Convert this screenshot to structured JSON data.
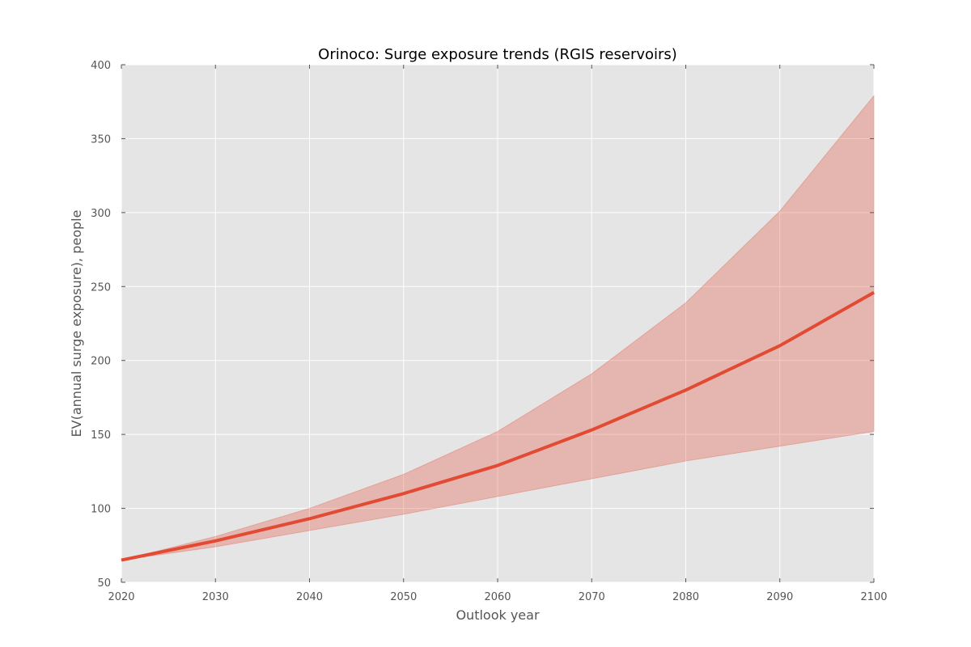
{
  "chart_data": {
    "type": "area",
    "title": "Orinoco: Surge exposure trends (RGIS reservoirs)",
    "xlabel": "Outlook year",
    "ylabel": "EV(annual surge exposure), people",
    "xlim": [
      2020,
      2100
    ],
    "ylim": [
      50,
      400
    ],
    "x_ticks": [
      2020,
      2030,
      2040,
      2050,
      2060,
      2070,
      2080,
      2090,
      2100
    ],
    "y_ticks": [
      50,
      100,
      150,
      200,
      250,
      300,
      350,
      400
    ],
    "grid": true,
    "legend": "none",
    "x": [
      2020,
      2030,
      2040,
      2050,
      2060,
      2070,
      2080,
      2090,
      2100
    ],
    "series": [
      {
        "role": "central",
        "values": [
          65,
          78,
          93,
          110,
          129,
          153,
          180,
          210,
          246
        ]
      },
      {
        "role": "band-lower",
        "values": [
          65,
          74,
          85,
          96,
          108,
          120,
          132,
          142,
          152
        ]
      },
      {
        "role": "band-upper",
        "values": [
          65,
          81,
          100,
          123,
          152,
          191,
          239,
          301,
          379
        ]
      }
    ],
    "colors": {
      "line": "#e24a33",
      "band": "#e24a33",
      "plot_background": "#e5e5e5",
      "grid": "#ffffff"
    }
  }
}
